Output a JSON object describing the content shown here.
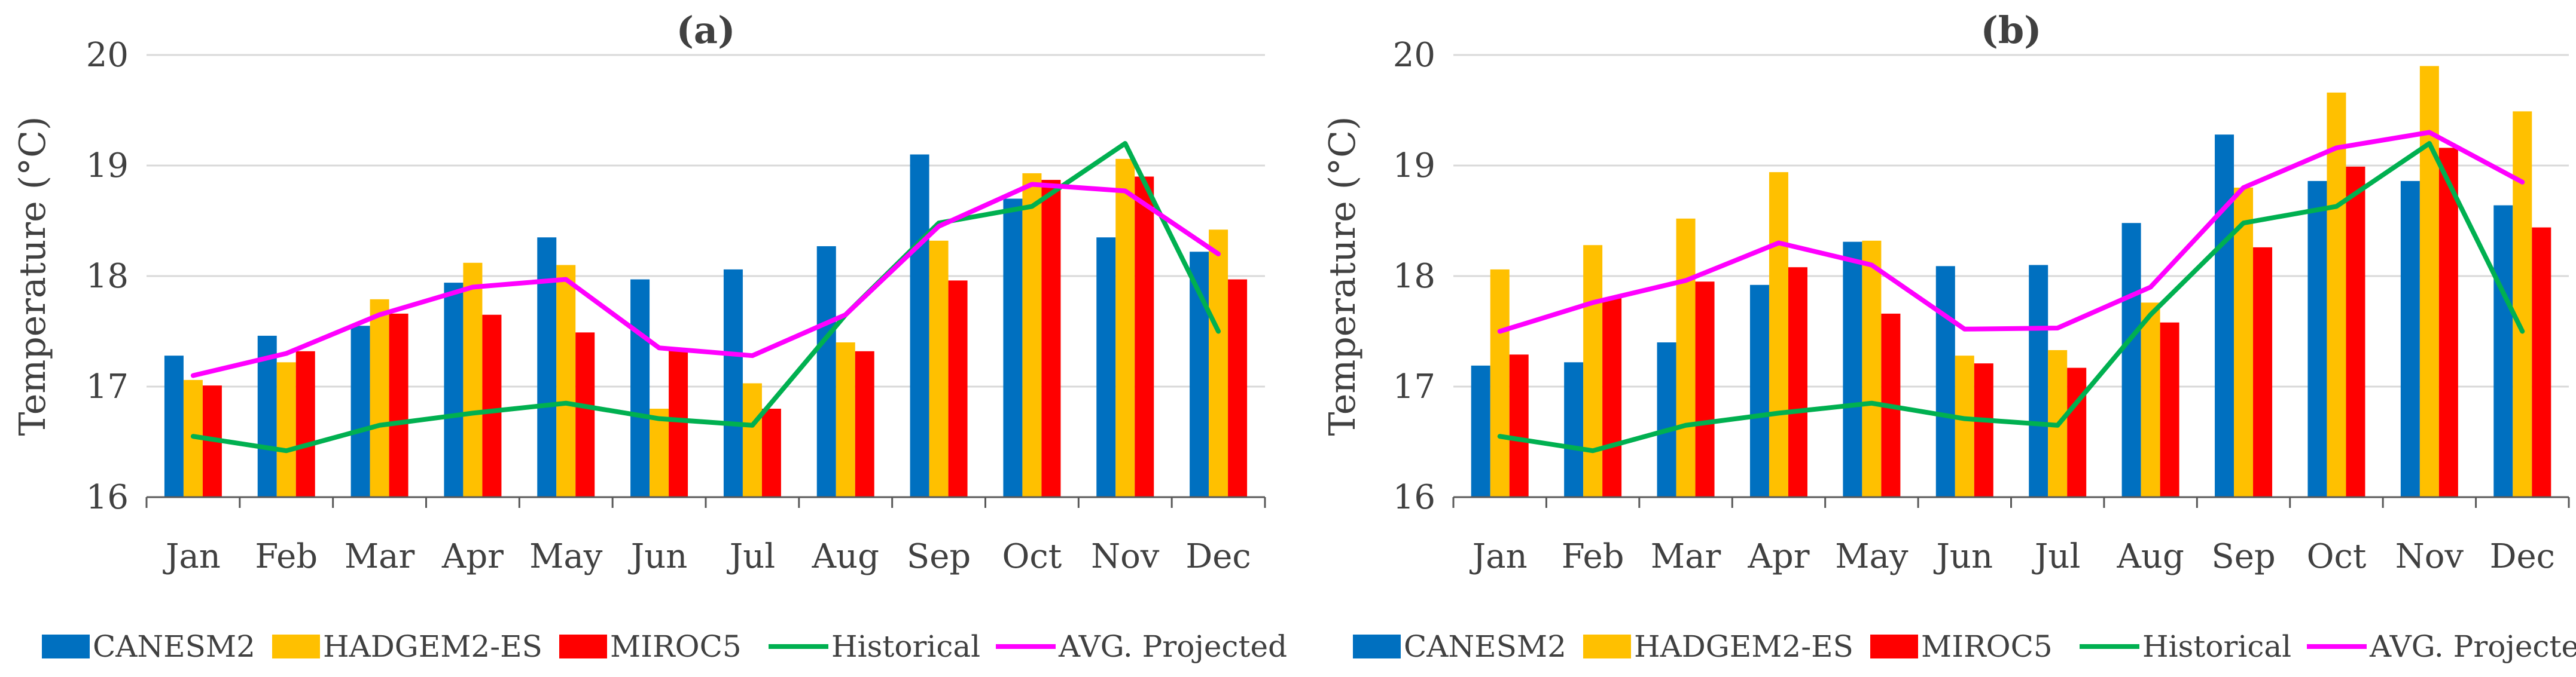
{
  "chart_data": [
    {
      "type": "bar",
      "title": "(a)",
      "xlabel": "",
      "ylabel": "Temperature (°C)",
      "ylim": [
        16,
        20
      ],
      "yticks": [
        16,
        17,
        18,
        19,
        20
      ],
      "grid": true,
      "legend": "bottom",
      "categories": [
        "Jan",
        "Feb",
        "Mar",
        "Apr",
        "May",
        "Jun",
        "Jul",
        "Aug",
        "Sep",
        "Oct",
        "Nov",
        "Dec"
      ],
      "series": [
        {
          "name": "CANESM2",
          "kind": "bar",
          "color": "#0070C0",
          "values": [
            17.28,
            17.46,
            17.55,
            17.94,
            18.35,
            17.97,
            18.06,
            18.27,
            19.1,
            18.7,
            18.35,
            18.22
          ]
        },
        {
          "name": "HADGEM2-ES",
          "kind": "bar",
          "color": "#FFC000",
          "values": [
            17.06,
            17.22,
            17.79,
            18.12,
            18.1,
            16.8,
            17.03,
            17.4,
            18.32,
            18.93,
            19.06,
            18.42
          ]
        },
        {
          "name": "MIROC5",
          "kind": "bar",
          "color": "#FF0000",
          "values": [
            17.01,
            17.32,
            17.66,
            17.65,
            17.49,
            17.33,
            16.8,
            17.32,
            17.96,
            18.87,
            18.9,
            17.97
          ]
        },
        {
          "name": "Historical",
          "kind": "line",
          "color": "#00B050",
          "values": [
            16.55,
            16.42,
            16.65,
            16.76,
            16.85,
            16.71,
            16.65,
            17.65,
            18.48,
            18.63,
            19.2,
            17.5
          ]
        },
        {
          "name": "AVG. Projected",
          "kind": "line",
          "color": "#FF00FF",
          "values": [
            17.1,
            17.3,
            17.65,
            17.9,
            17.97,
            17.35,
            17.28,
            17.65,
            18.45,
            18.83,
            18.77,
            18.2
          ]
        }
      ]
    },
    {
      "type": "bar",
      "title": "(b)",
      "xlabel": "",
      "ylabel": "Temperature (°C)",
      "ylim": [
        16,
        20
      ],
      "yticks": [
        16,
        17,
        18,
        19,
        20
      ],
      "grid": true,
      "legend": "bottom",
      "categories": [
        "Jan",
        "Feb",
        "Mar",
        "Apr",
        "May",
        "Jun",
        "Jul",
        "Aug",
        "Sep",
        "Oct",
        "Nov",
        "Dec"
      ],
      "series": [
        {
          "name": "CANESM2",
          "kind": "bar",
          "color": "#0070C0",
          "values": [
            17.19,
            17.22,
            17.4,
            17.92,
            18.31,
            18.09,
            18.1,
            18.48,
            19.28,
            18.86,
            18.86,
            18.64
          ]
        },
        {
          "name": "HADGEM2-ES",
          "kind": "bar",
          "color": "#FFC000",
          "values": [
            18.06,
            18.28,
            18.52,
            18.94,
            18.32,
            17.28,
            17.33,
            17.76,
            18.8,
            19.66,
            19.9,
            19.49
          ]
        },
        {
          "name": "MIROC5",
          "kind": "bar",
          "color": "#FF0000",
          "values": [
            17.29,
            17.8,
            17.95,
            18.08,
            17.66,
            17.21,
            17.17,
            17.58,
            18.26,
            18.99,
            19.16,
            18.44
          ]
        },
        {
          "name": "Historical",
          "kind": "line",
          "color": "#00B050",
          "values": [
            16.55,
            16.42,
            16.65,
            16.76,
            16.85,
            16.71,
            16.65,
            17.65,
            18.48,
            18.63,
            19.2,
            17.5
          ]
        },
        {
          "name": "AVG. Projected",
          "kind": "line",
          "color": "#FF00FF",
          "values": [
            17.5,
            17.76,
            17.96,
            18.3,
            18.1,
            17.52,
            17.53,
            17.9,
            18.8,
            19.16,
            19.3,
            18.85
          ]
        }
      ]
    }
  ]
}
